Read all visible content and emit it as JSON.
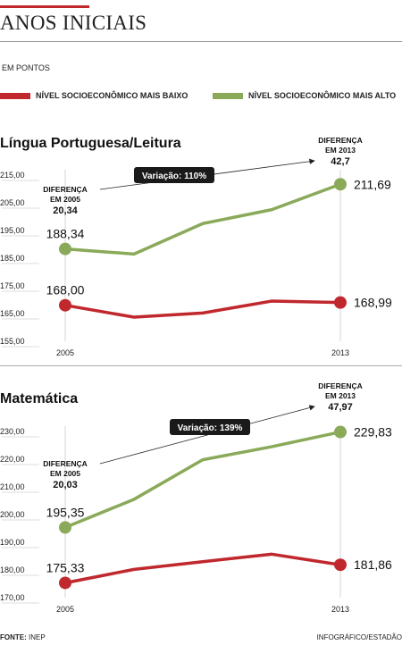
{
  "header": {
    "title": "ANOS INICIAIS",
    "units": "EM PONTOS"
  },
  "legend": {
    "low": "NÍVEL SOCIOECONÔMICO MAIS BAIXO",
    "high": "NÍVEL SOCIOECONÔMICO MAIS ALTO"
  },
  "colors": {
    "low": "#c0282d",
    "high": "#8aaa5a",
    "accent": "#c0282d"
  },
  "footer": {
    "source_label": "FONTE:",
    "source_value": " INEP",
    "credit": "INFOGRÁFICO/ESTADÃO"
  },
  "chart_data": [
    {
      "type": "line",
      "title": "Língua Portuguesa/Leitura",
      "x": [
        "2005",
        "",
        "",
        "",
        "2013"
      ],
      "x_labels": [
        "2005",
        "2013"
      ],
      "ylim": [
        155,
        215
      ],
      "yticks": [
        "215,00",
        "205,00",
        "195,00",
        "185,00",
        "175,00",
        "165,00",
        "155,00"
      ],
      "grid": false,
      "series": [
        {
          "name": "NÍVEL SOCIOECONÔMICO MAIS ALTO",
          "key": "high",
          "values": [
            188.34,
            186.5,
            197.5,
            202.5,
            211.69
          ]
        },
        {
          "name": "NÍVEL SOCIOECONÔMICO MAIS BAIXO",
          "key": "low",
          "values": [
            168.0,
            163.7,
            165.2,
            169.5,
            168.99
          ]
        }
      ],
      "labels": {
        "start_high": "188,34",
        "start_low": "168,00",
        "end_high": "211,69",
        "end_low": "168,99"
      },
      "diff_start": {
        "line1": "DIFERENÇA",
        "line2": "EM 2005",
        "value": "20,34"
      },
      "diff_end": {
        "line1": "DIFERENÇA",
        "line2": "EM 2013",
        "value": "42,7"
      },
      "variation": "Variação: 110%"
    },
    {
      "type": "line",
      "title": "Matemática",
      "x": [
        "2005",
        "",
        "",
        "",
        "2013"
      ],
      "x_labels": [
        "2005",
        "2013"
      ],
      "ylim": [
        170,
        230
      ],
      "yticks": [
        "230,00",
        "220,00",
        "210,00",
        "200,00",
        "190,00",
        "180,00",
        "170,00"
      ],
      "grid": false,
      "series": [
        {
          "name": "NÍVEL SOCIOECONÔMICO MAIS ALTO",
          "key": "high",
          "values": [
            195.35,
            205.5,
            219.8,
            224.5,
            229.83
          ]
        },
        {
          "name": "NÍVEL SOCIOECONÔMICO MAIS BAIXO",
          "key": "low",
          "values": [
            175.33,
            180.2,
            183.0,
            185.7,
            181.86
          ]
        }
      ],
      "labels": {
        "start_high": "195,35",
        "start_low": "175,33",
        "end_high": "229,83",
        "end_low": "181,86"
      },
      "diff_start": {
        "line1": "DIFERENÇA",
        "line2": "EM 2005",
        "value": "20,03"
      },
      "diff_end": {
        "line1": "DIFERENÇA",
        "line2": "EM 2013",
        "value": "47,97"
      },
      "variation": "Variação: 139%"
    }
  ]
}
